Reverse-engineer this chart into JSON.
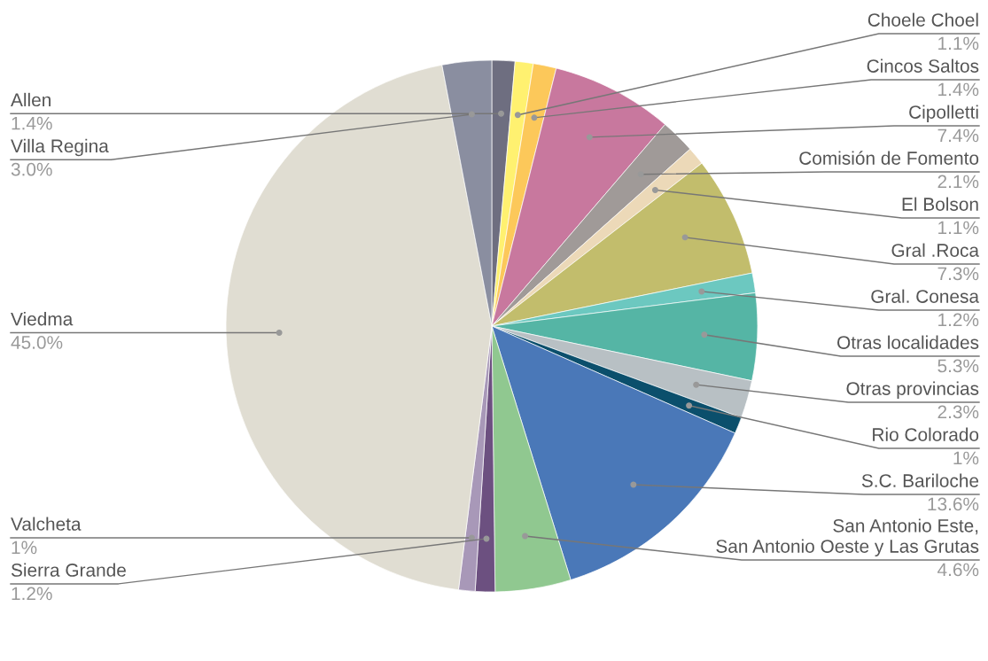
{
  "chart_data": {
    "type": "pie",
    "categories": [
      "Allen",
      "Choele Choel",
      "Cincos Saltos",
      "Cipolletti",
      "Comisión de Fomento",
      "El Bolson",
      "Gral .Roca",
      "Gral. Conesa",
      "Otras localidades",
      "Otras provincias",
      "Rio Colorado",
      "S.C. Bariloche",
      "San Antonio Este,\nSan Antonio Oeste y Las Grutas",
      "Sierra Grande",
      "Valcheta",
      "Viedma",
      "Villa Regina"
    ],
    "values": [
      1.4,
      1.1,
      1.4,
      7.4,
      2.1,
      1.1,
      7.3,
      1.2,
      5.3,
      2.3,
      1,
      13.6,
      4.6,
      1.2,
      1,
      45.0,
      3.0
    ],
    "value_labels": [
      "1.4%",
      "1.1%",
      "1.4%",
      "7.4%",
      "2.1%",
      "1.1%",
      "7.3%",
      "1.2%",
      "5.3%",
      "2.3%",
      "1%",
      "13.6%",
      "4.6%",
      "1.2%",
      "1%",
      "45.0%",
      "3.0%"
    ],
    "colors": [
      "#6e6e80",
      "#fff170",
      "#fcc85a",
      "#c8789e",
      "#a09a98",
      "#ecd9b8",
      "#c2bd6c",
      "#6cc8c0",
      "#55b5a5",
      "#b8c0c4",
      "#0b4f6c",
      "#4a78b8",
      "#90c890",
      "#6c5080",
      "#a898b8",
      "#e0ddd2",
      "#8a8ea0"
    ],
    "legend": false
  }
}
